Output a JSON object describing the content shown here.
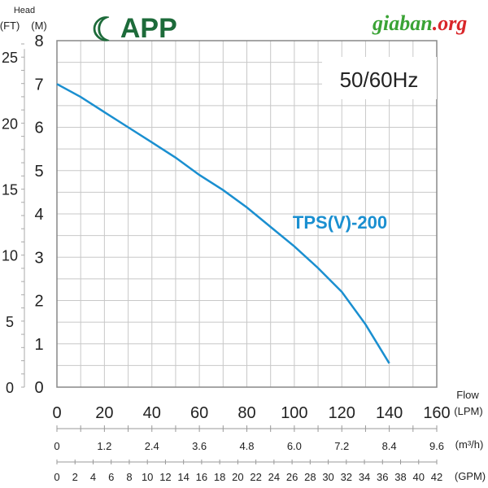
{
  "chart_data": {
    "type": "line",
    "title": "50/60Hz",
    "series": [
      {
        "name": "TPS(V)-200",
        "color": "#1a8fd0",
        "x": [
          0,
          10,
          20,
          30,
          40,
          50,
          60,
          70,
          80,
          90,
          100,
          110,
          120,
          130,
          140
        ],
        "y": [
          7.0,
          6.7,
          6.35,
          6.0,
          5.65,
          5.3,
          4.9,
          4.55,
          4.15,
          3.7,
          3.25,
          2.75,
          2.2,
          1.45,
          0.55
        ]
      }
    ],
    "xlabel": "Flow (LPM)",
    "ylabel": "Head (M)",
    "ylabel_ft": "(FT)",
    "head_label": "Head",
    "xlim": [
      0,
      160
    ],
    "ylim": [
      0,
      8
    ],
    "x_ticks": [
      "0",
      "20",
      "40",
      "60",
      "80",
      "100",
      "120",
      "140",
      "160"
    ],
    "x_unit": "(LPM)",
    "flow_label": "Flow",
    "y_ticks_m": [
      "0",
      "1",
      "2",
      "3",
      "4",
      "5",
      "6",
      "7",
      "8"
    ],
    "y_unit_m": "(M)",
    "y_ticks_ft": [
      "0",
      "5",
      "10",
      "15",
      "20",
      "25"
    ],
    "m3h_ticks": [
      "0",
      "1.2",
      "2.4",
      "3.6",
      "4.8",
      "6.0",
      "7.2",
      "8.4",
      "9.6"
    ],
    "m3h_unit": "(m³/h)",
    "gpm_ticks": [
      "0",
      "2",
      "4",
      "6",
      "8",
      "10",
      "12",
      "14",
      "16",
      "18",
      "20",
      "22",
      "24",
      "26",
      "28",
      "30",
      "32",
      "34",
      "36",
      "38",
      "40",
      "42"
    ],
    "gpm_unit": "(GPM)",
    "grid": true
  },
  "brand": {
    "logo": "APP",
    "site_a": "giaban",
    "site_b": ".org"
  }
}
